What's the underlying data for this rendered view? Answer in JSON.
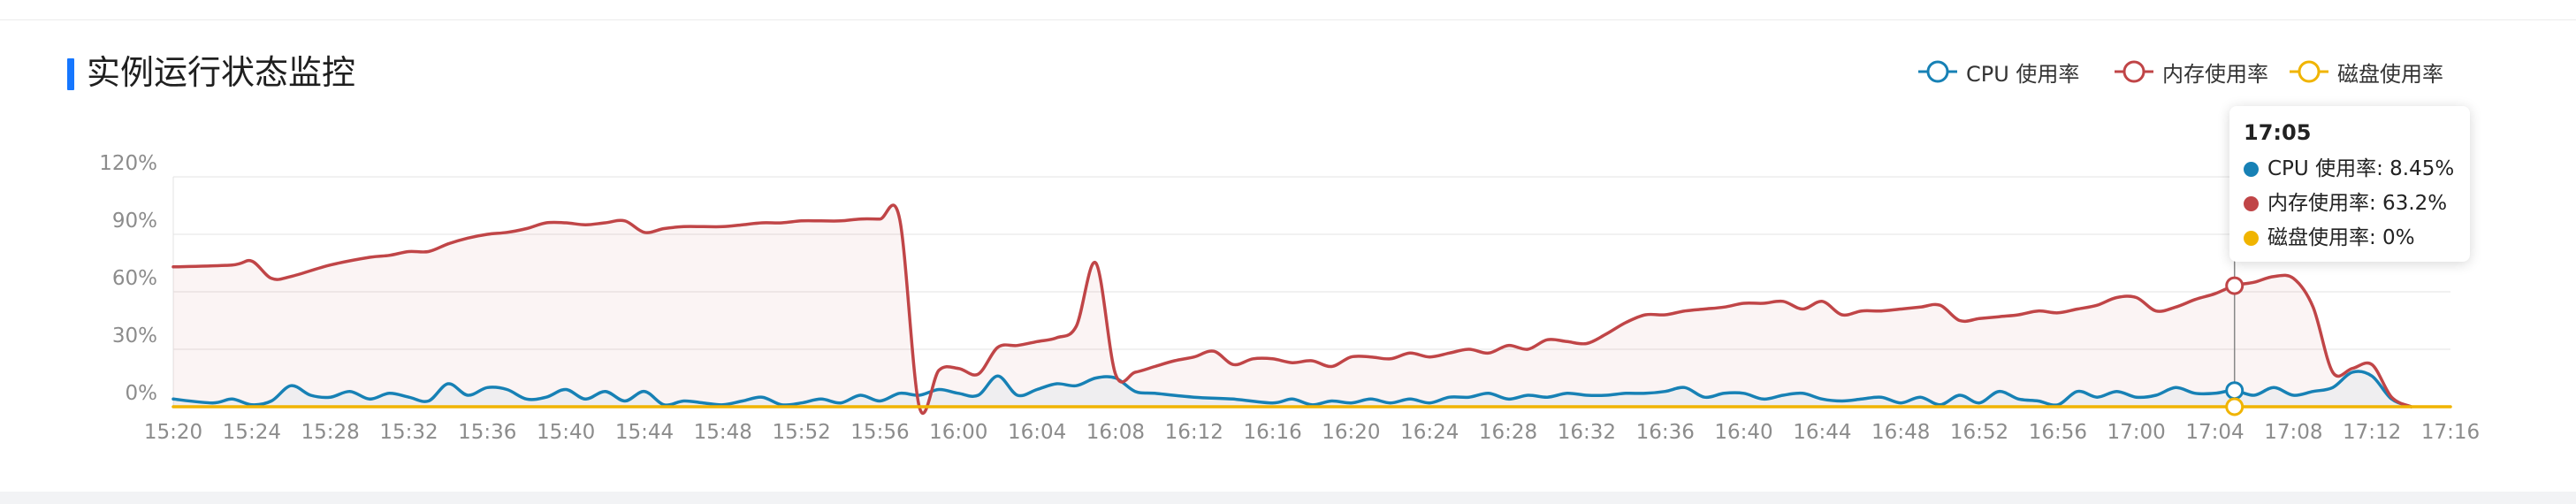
{
  "page": {
    "title": "实例运行状态监控"
  },
  "legend": [
    {
      "label": "CPU 使用率",
      "color": "#1781b5"
    },
    {
      "label": "内存使用率",
      "color": "#c04547"
    },
    {
      "label": "磁盘使用率",
      "color": "#f0b400"
    }
  ],
  "tooltip": {
    "time": "17:05",
    "rows": [
      {
        "text": "CPU 使用率: 8.45%",
        "color": "#1781b5"
      },
      {
        "text": "内存使用率: 63.2%",
        "color": "#c04547"
      },
      {
        "text": "磁盘使用率: 0%",
        "color": "#f0b400"
      }
    ]
  },
  "chart_data": {
    "type": "line",
    "title": "实例运行状态监控",
    "xlabel": "",
    "ylabel": "",
    "x_tick_labels": [
      "15:20",
      "15:24",
      "15:28",
      "15:32",
      "15:36",
      "15:40",
      "15:44",
      "15:48",
      "15:52",
      "15:56",
      "16:00",
      "16:04",
      "16:08",
      "16:12",
      "16:16",
      "16:20",
      "16:24",
      "16:28",
      "16:32",
      "16:36",
      "16:40",
      "16:44",
      "16:48",
      "16:52",
      "16:56",
      "17:00",
      "17:04",
      "17:08",
      "17:12",
      "17:16"
    ],
    "y_tick_labels": [
      "0%",
      "30%",
      "60%",
      "90%",
      "120%"
    ],
    "ylim": [
      0,
      120
    ],
    "grid": true,
    "legend_position": "top-right",
    "hover": {
      "time": "17:05",
      "cpu": 8.45,
      "memory": 63.2,
      "disk": 0
    },
    "series": [
      {
        "name": "CPU 使用率",
        "color": "#1781b5",
        "points": [
          [
            "15:20",
            4
          ],
          [
            "15:22",
            2
          ],
          [
            "15:23",
            4
          ],
          [
            "15:24",
            1
          ],
          [
            "15:25",
            3
          ],
          [
            "15:26",
            11
          ],
          [
            "15:27",
            6
          ],
          [
            "15:28",
            5
          ],
          [
            "15:29",
            8
          ],
          [
            "15:30",
            4
          ],
          [
            "15:31",
            7
          ],
          [
            "15:32",
            5
          ],
          [
            "15:33",
            3
          ],
          [
            "15:34",
            12
          ],
          [
            "15:35",
            6
          ],
          [
            "15:36",
            10
          ],
          [
            "15:37",
            9
          ],
          [
            "15:38",
            4
          ],
          [
            "15:39",
            5
          ],
          [
            "15:40",
            9
          ],
          [
            "15:41",
            4
          ],
          [
            "15:42",
            8
          ],
          [
            "15:43",
            3
          ],
          [
            "15:44",
            8
          ],
          [
            "15:45",
            1
          ],
          [
            "15:46",
            3
          ],
          [
            "15:47",
            2
          ],
          [
            "15:48",
            1
          ],
          [
            "15:49",
            3
          ],
          [
            "15:50",
            5
          ],
          [
            "15:51",
            1
          ],
          [
            "15:52",
            2
          ],
          [
            "15:53",
            4
          ],
          [
            "15:54",
            2
          ],
          [
            "15:55",
            6
          ],
          [
            "15:56",
            3
          ],
          [
            "15:57",
            7
          ],
          [
            "15:58",
            6
          ],
          [
            "15:59",
            9
          ],
          [
            "16:00",
            7
          ],
          [
            "16:01",
            6
          ],
          [
            "16:02",
            16
          ],
          [
            "16:03",
            6
          ],
          [
            "16:04",
            9
          ],
          [
            "16:05",
            12
          ],
          [
            "16:06",
            11
          ],
          [
            "16:07",
            15
          ],
          [
            "16:08",
            15
          ],
          [
            "16:09",
            8
          ],
          [
            "16:10",
            7
          ],
          [
            "16:12",
            5
          ],
          [
            "16:14",
            4
          ],
          [
            "16:16",
            2
          ],
          [
            "16:17",
            4
          ],
          [
            "16:18",
            1
          ],
          [
            "16:19",
            3
          ],
          [
            "16:20",
            2
          ],
          [
            "16:21",
            4
          ],
          [
            "16:22",
            2
          ],
          [
            "16:23",
            4
          ],
          [
            "16:24",
            2
          ],
          [
            "16:25",
            5
          ],
          [
            "16:26",
            5
          ],
          [
            "16:27",
            7
          ],
          [
            "16:28",
            4
          ],
          [
            "16:29",
            6
          ],
          [
            "16:30",
            5
          ],
          [
            "16:31",
            7
          ],
          [
            "16:32",
            6
          ],
          [
            "16:33",
            6
          ],
          [
            "16:34",
            7
          ],
          [
            "16:35",
            7
          ],
          [
            "16:36",
            8
          ],
          [
            "16:37",
            10
          ],
          [
            "16:38",
            5
          ],
          [
            "16:39",
            7
          ],
          [
            "16:40",
            7
          ],
          [
            "16:41",
            4
          ],
          [
            "16:42",
            6
          ],
          [
            "16:43",
            7
          ],
          [
            "16:44",
            4
          ],
          [
            "16:45",
            3
          ],
          [
            "16:46",
            4
          ],
          [
            "16:47",
            5
          ],
          [
            "16:48",
            2
          ],
          [
            "16:49",
            5
          ],
          [
            "16:50",
            1
          ],
          [
            "16:51",
            6
          ],
          [
            "16:52",
            2
          ],
          [
            "16:53",
            8
          ],
          [
            "16:54",
            4
          ],
          [
            "16:55",
            3
          ],
          [
            "16:56",
            1
          ],
          [
            "16:57",
            8
          ],
          [
            "16:58",
            5
          ],
          [
            "16:59",
            8
          ],
          [
            "17:00",
            5
          ],
          [
            "17:01",
            6
          ],
          [
            "17:02",
            10
          ],
          [
            "17:03",
            7
          ],
          [
            "17:04",
            7
          ],
          [
            "17:05",
            8.45
          ],
          [
            "17:06",
            6
          ],
          [
            "17:07",
            10
          ],
          [
            "17:08",
            6
          ],
          [
            "17:09",
            8
          ],
          [
            "17:10",
            10
          ],
          [
            "17:11",
            18
          ],
          [
            "17:12",
            16
          ],
          [
            "17:13",
            4
          ],
          [
            "17:14",
            0
          ]
        ]
      },
      {
        "name": "内存使用率",
        "color": "#c04547",
        "points": [
          [
            "15:20",
            73
          ],
          [
            "15:23",
            74
          ],
          [
            "15:24",
            76
          ],
          [
            "15:25",
            67
          ],
          [
            "15:26",
            68
          ],
          [
            "15:28",
            74
          ],
          [
            "15:30",
            78
          ],
          [
            "15:31",
            79
          ],
          [
            "15:32",
            81
          ],
          [
            "15:33",
            81
          ],
          [
            "15:34",
            85
          ],
          [
            "15:35",
            88
          ],
          [
            "15:36",
            90
          ],
          [
            "15:37",
            91
          ],
          [
            "15:38",
            93
          ],
          [
            "15:39",
            96
          ],
          [
            "15:40",
            96
          ],
          [
            "15:41",
            95
          ],
          [
            "15:42",
            96
          ],
          [
            "15:43",
            97
          ],
          [
            "15:44",
            91
          ],
          [
            "15:45",
            93
          ],
          [
            "15:46",
            94
          ],
          [
            "15:47",
            94
          ],
          [
            "15:48",
            94
          ],
          [
            "15:49",
            95
          ],
          [
            "15:50",
            96
          ],
          [
            "15:51",
            96
          ],
          [
            "15:52",
            97
          ],
          [
            "15:53",
            97
          ],
          [
            "15:54",
            97
          ],
          [
            "15:55",
            98
          ],
          [
            "15:56",
            98
          ],
          [
            "15:57",
            98
          ],
          [
            "15:58",
            0
          ],
          [
            "15:59",
            19
          ],
          [
            "16:00",
            20
          ],
          [
            "16:01",
            17
          ],
          [
            "16:02",
            31
          ],
          [
            "16:03",
            32
          ],
          [
            "16:04",
            34
          ],
          [
            "16:05",
            36
          ],
          [
            "16:06",
            42
          ],
          [
            "16:07",
            75
          ],
          [
            "16:08",
            17
          ],
          [
            "16:09",
            18
          ],
          [
            "16:10",
            21
          ],
          [
            "16:11",
            24
          ],
          [
            "16:12",
            26
          ],
          [
            "16:13",
            29
          ],
          [
            "16:14",
            22
          ],
          [
            "16:15",
            25
          ],
          [
            "16:16",
            25
          ],
          [
            "16:17",
            23
          ],
          [
            "16:18",
            24
          ],
          [
            "16:19",
            21
          ],
          [
            "16:20",
            26
          ],
          [
            "16:21",
            26
          ],
          [
            "16:22",
            25
          ],
          [
            "16:23",
            28
          ],
          [
            "16:24",
            26
          ],
          [
            "16:25",
            28
          ],
          [
            "16:26",
            30
          ],
          [
            "16:27",
            28
          ],
          [
            "16:28",
            32
          ],
          [
            "16:29",
            30
          ],
          [
            "16:30",
            35
          ],
          [
            "16:31",
            34
          ],
          [
            "16:32",
            33
          ],
          [
            "16:33",
            38
          ],
          [
            "16:34",
            44
          ],
          [
            "16:35",
            48
          ],
          [
            "16:36",
            48
          ],
          [
            "16:37",
            50
          ],
          [
            "16:38",
            51
          ],
          [
            "16:39",
            52
          ],
          [
            "16:40",
            54
          ],
          [
            "16:41",
            54
          ],
          [
            "16:42",
            55
          ],
          [
            "16:43",
            51
          ],
          [
            "16:44",
            55
          ],
          [
            "16:45",
            48
          ],
          [
            "16:46",
            50
          ],
          [
            "16:47",
            50
          ],
          [
            "16:48",
            51
          ],
          [
            "16:49",
            52
          ],
          [
            "16:50",
            53
          ],
          [
            "16:51",
            45
          ],
          [
            "16:52",
            46
          ],
          [
            "16:53",
            47
          ],
          [
            "16:54",
            48
          ],
          [
            "16:55",
            50
          ],
          [
            "16:56",
            49
          ],
          [
            "16:57",
            51
          ],
          [
            "16:58",
            53
          ],
          [
            "16:59",
            57
          ],
          [
            "17:00",
            57
          ],
          [
            "17:01",
            50
          ],
          [
            "17:02",
            52
          ],
          [
            "17:03",
            56
          ],
          [
            "17:04",
            59
          ],
          [
            "17:05",
            63.2
          ],
          [
            "17:06",
            65
          ],
          [
            "17:07",
            68
          ],
          [
            "17:08",
            67
          ],
          [
            "17:09",
            52
          ],
          [
            "17:10",
            18
          ],
          [
            "17:11",
            20
          ],
          [
            "17:12",
            22
          ],
          [
            "17:13",
            5
          ],
          [
            "17:14",
            0
          ]
        ]
      },
      {
        "name": "磁盘使用率",
        "color": "#f0b400",
        "points": [
          [
            "15:20",
            0
          ],
          [
            "17:16",
            0
          ]
        ]
      }
    ]
  }
}
